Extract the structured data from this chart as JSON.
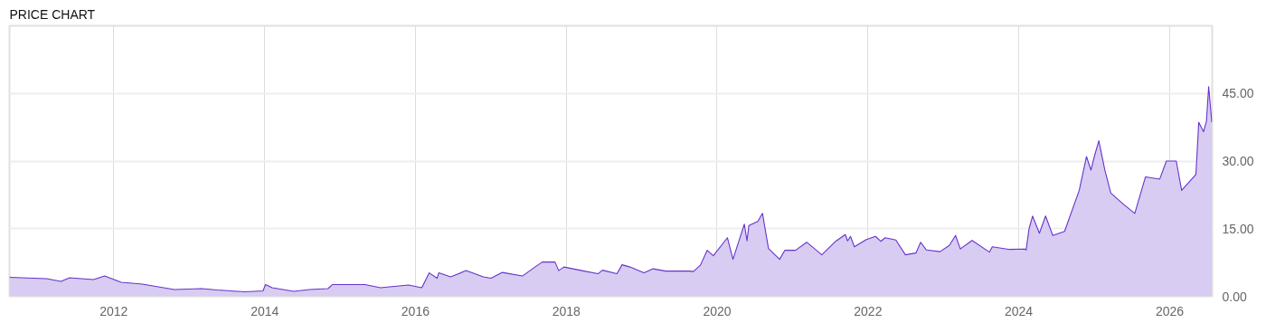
{
  "chart_data": {
    "type": "area",
    "title": "PRICE CHART",
    "x": [
      "2010-08-14",
      "2011-02-10",
      "2011-04-20",
      "2011-06-01",
      "2011-09-25",
      "2011-11-18",
      "2012-02-06",
      "2012-05-18",
      "2012-10-20",
      "2013-03-03",
      "2013-05-15",
      "2013-09-27",
      "2013-12-24",
      "2014-01-05",
      "2014-02-06",
      "2014-05-22",
      "2014-08-07",
      "2014-11-03",
      "2014-11-25",
      "2015-05-01",
      "2015-07-16",
      "2015-11-28",
      "2016-02-01",
      "2016-03-08",
      "2016-04-15",
      "2016-04-23",
      "2016-06-20",
      "2016-09-02",
      "2016-11-25",
      "2017-01-01",
      "2017-02-25",
      "2017-06-02",
      "2017-08-08",
      "2017-09-06",
      "2017-11-07",
      "2017-11-25",
      "2017-12-20",
      "2018-03-18",
      "2018-06-03",
      "2018-06-25",
      "2018-09-03",
      "2018-09-28",
      "2018-11-05",
      "2019-01-12",
      "2019-02-25",
      "2019-04-28",
      "2019-06-25",
      "2019-08-22",
      "2019-09-08",
      "2019-10-12",
      "2019-11-14",
      "2019-12-14",
      "2020-02-20",
      "2020-03-18",
      "2020-05-12",
      "2020-05-25",
      "2020-06-03",
      "2020-07-16",
      "2020-08-08",
      "2020-09-06",
      "2020-10-30",
      "2020-11-24",
      "2021-01-15",
      "2021-03-10",
      "2021-05-22",
      "2021-07-31",
      "2021-09-13",
      "2021-09-24",
      "2021-10-08",
      "2021-10-27",
      "2021-12-24",
      "2022-02-06",
      "2022-03-04",
      "2022-03-25",
      "2022-05-16",
      "2022-07-01",
      "2022-08-21",
      "2022-09-13",
      "2022-10-10",
      "2022-12-16",
      "2023-01-30",
      "2023-03-01",
      "2023-03-24",
      "2023-05-20",
      "2023-08-12",
      "2023-08-26",
      "2023-11-18",
      "2024-01-30",
      "2024-02-06",
      "2024-02-20",
      "2024-03-08",
      "2024-04-10",
      "2024-05-10",
      "2024-06-14",
      "2024-08-10",
      "2024-10-20",
      "2024-11-24",
      "2024-12-16",
      "2025-01-01",
      "2025-01-23",
      "2025-02-21",
      "2025-03-22",
      "2025-05-23",
      "2025-07-16",
      "2025-09-06",
      "2025-11-14",
      "2025-12-16",
      "2026-02-02",
      "2026-02-28",
      "2026-05-08",
      "2026-05-22",
      "2026-06-14",
      "2026-06-28",
      "2026-07-09",
      "2026-07-24"
    ],
    "series": [
      {
        "color": "#6633cc",
        "values": [
          4.2,
          3.9,
          3.3,
          4.1,
          3.7,
          4.5,
          3.1,
          2.7,
          1.5,
          1.7,
          1.4,
          1.0,
          1.2,
          2.6,
          1.9,
          1.1,
          1.5,
          1.7,
          2.6,
          2.6,
          1.9,
          2.5,
          1.9,
          5.2,
          4.0,
          5.2,
          4.3,
          5.7,
          4.3,
          4.0,
          5.3,
          4.5,
          6.7,
          7.6,
          7.6,
          5.7,
          6.5,
          5.7,
          5.0,
          5.8,
          5.0,
          7.0,
          6.5,
          5.2,
          6.1,
          5.6,
          5.6,
          5.6,
          5.5,
          6.9,
          10.2,
          9.0,
          13.0,
          8.2,
          16.0,
          12.3,
          15.7,
          16.6,
          18.4,
          10.6,
          8.2,
          10.2,
          10.2,
          12.0,
          9.2,
          12.3,
          13.7,
          12.3,
          13.3,
          11.0,
          12.6,
          13.3,
          12.2,
          13.0,
          12.5,
          9.2,
          9.6,
          12.0,
          10.3,
          9.9,
          11.3,
          13.5,
          10.5,
          12.4,
          9.8,
          11.0,
          10.4,
          10.5,
          10.3,
          15.0,
          17.8,
          14.0,
          17.8,
          13.5,
          14.4,
          23.5,
          31.0,
          28.0,
          31.0,
          34.5,
          28.0,
          22.9,
          20.4,
          18.4,
          26.5,
          26.0,
          30.0,
          30.0,
          23.5,
          27.0,
          38.6,
          36.5,
          38.8,
          46.5,
          38.6
        ]
      }
    ],
    "xlim": [
      "2010-08-14",
      "2026-07-26"
    ],
    "xticks": [
      "2012",
      "2014",
      "2016",
      "2018",
      "2020",
      "2022",
      "2024",
      "2026"
    ],
    "ylim": [
      0,
      60
    ],
    "yticks": [
      {
        "value": 0,
        "label": "0.00"
      },
      {
        "value": 15,
        "label": "15.00"
      },
      {
        "value": 30,
        "label": "30.00"
      },
      {
        "value": 45,
        "label": "45.00"
      }
    ],
    "grid": true
  }
}
